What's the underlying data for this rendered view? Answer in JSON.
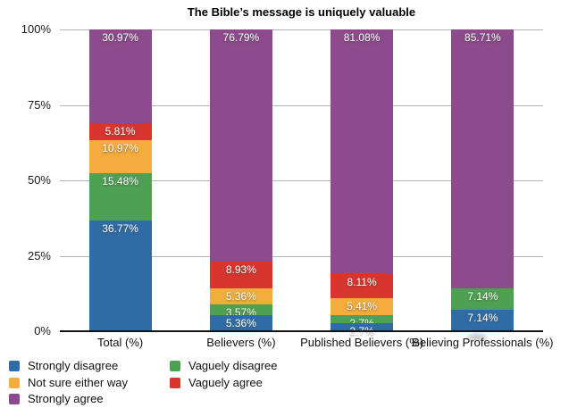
{
  "title": "The Bible’s message is uniquely valuable",
  "colors": {
    "strongly_disagree": "#2f6ca5",
    "not_sure_either_way": "#f4ac3c",
    "strongly_agree": "#8d4a8c",
    "vaguely_disagree": "#4ea152",
    "vaguely_agree": "#d8352f",
    "gridline": "#b3b3b3",
    "axis": "#141414",
    "value_label_text": "#ffffff"
  },
  "chart_data": {
    "type": "bar",
    "stacked": true,
    "title": "The Bible’s message is uniquely valuable",
    "categories": [
      "Total (%)",
      "Believers (%)",
      "Published Believers (%)",
      "Believing Professionals (%)"
    ],
    "ylim": [
      0,
      100
    ],
    "y_ticks_top_to_bottom": [
      "100%",
      "75%",
      "50%",
      "25%",
      "0%"
    ],
    "grid": true,
    "legend_position": "bottom-left",
    "stack_order_top_to_bottom": [
      "Strongly agree",
      "Vaguely agree",
      "Not sure either way",
      "Vaguely disagree",
      "Strongly disagree"
    ],
    "series": [
      {
        "name": "Strongly agree",
        "color": "#8d4a8c",
        "values": [
          30.97,
          76.79,
          81.08,
          85.71
        ],
        "labels": [
          "30.97%",
          "76.79%",
          "81.08%",
          "85.71%"
        ]
      },
      {
        "name": "Vaguely agree",
        "color": "#d8352f",
        "values": [
          5.81,
          8.93,
          8.11,
          0
        ],
        "labels": [
          "5.81%",
          "8.93%",
          "8.11%",
          ""
        ]
      },
      {
        "name": "Not sure either way",
        "color": "#f4ac3c",
        "values": [
          10.97,
          5.36,
          5.41,
          0
        ],
        "labels": [
          "10.97%",
          "5.36%",
          "5.41%",
          ""
        ]
      },
      {
        "name": "Vaguely disagree",
        "color": "#4ea152",
        "values": [
          15.48,
          3.57,
          2.7,
          7.14
        ],
        "labels": [
          "15.48%",
          "3.57%",
          "2.7%",
          "7.14%"
        ]
      },
      {
        "name": "Strongly disagree",
        "color": "#2f6ca5",
        "values": [
          36.77,
          5.36,
          2.7,
          7.14
        ],
        "labels": [
          "36.77%",
          "5.36%",
          "2.7%",
          "7.14%"
        ]
      }
    ]
  },
  "legend": {
    "columns": [
      [
        {
          "label": "Strongly disagree",
          "color": "#2f6ca5"
        },
        {
          "label": "Not sure either way",
          "color": "#f4ac3c"
        },
        {
          "label": "Strongly agree",
          "color": "#8d4a8c"
        }
      ],
      [
        {
          "label": "Vaguely disagree",
          "color": "#4ea152"
        },
        {
          "label": "Vaguely agree",
          "color": "#d8352f"
        }
      ]
    ]
  }
}
